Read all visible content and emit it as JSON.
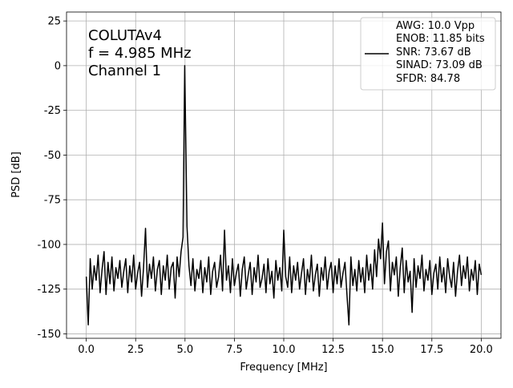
{
  "chart_data": {
    "type": "line",
    "annotations": [
      "COLUTAv4",
      "f = 4.985 MHz",
      "Channel 1"
    ],
    "xlabel": "Frequency [MHz]",
    "ylabel": "PSD [dB]",
    "x": [
      0,
      0.1,
      0.2,
      0.3,
      0.4,
      0.5,
      0.6,
      0.7,
      0.8,
      0.9,
      1,
      1.1,
      1.2,
      1.3,
      1.4,
      1.5,
      1.6,
      1.7,
      1.8,
      1.9,
      2,
      2.1,
      2.2,
      2.3,
      2.4,
      2.5,
      2.6,
      2.7,
      2.8,
      2.9,
      3,
      3.1,
      3.2,
      3.3,
      3.4,
      3.5,
      3.6,
      3.7,
      3.8,
      3.9,
      4,
      4.1,
      4.2,
      4.3,
      4.4,
      4.5,
      4.6,
      4.7,
      4.8,
      4.9,
      4.985,
      5.1,
      5.2,
      5.3,
      5.4,
      5.5,
      5.6,
      5.7,
      5.8,
      5.9,
      6,
      6.1,
      6.2,
      6.3,
      6.4,
      6.5,
      6.6,
      6.7,
      6.8,
      6.9,
      7,
      7.1,
      7.2,
      7.3,
      7.4,
      7.5,
      7.6,
      7.7,
      7.8,
      7.9,
      8,
      8.1,
      8.2,
      8.3,
      8.4,
      8.5,
      8.6,
      8.7,
      8.8,
      8.9,
      9,
      9.1,
      9.2,
      9.3,
      9.4,
      9.5,
      9.6,
      9.7,
      9.8,
      9.9,
      10,
      10.1,
      10.2,
      10.3,
      10.4,
      10.5,
      10.6,
      10.7,
      10.8,
      10.9,
      11,
      11.1,
      11.2,
      11.3,
      11.4,
      11.5,
      11.6,
      11.7,
      11.8,
      11.9,
      12,
      12.1,
      12.2,
      12.3,
      12.4,
      12.5,
      12.6,
      12.7,
      12.8,
      12.9,
      13,
      13.1,
      13.2,
      13.3,
      13.4,
      13.5,
      13.6,
      13.7,
      13.8,
      13.9,
      14,
      14.1,
      14.2,
      14.3,
      14.4,
      14.5,
      14.6,
      14.7,
      14.8,
      14.9,
      15,
      15.1,
      15.2,
      15.3,
      15.4,
      15.5,
      15.6,
      15.7,
      15.8,
      15.9,
      16,
      16.1,
      16.2,
      16.3,
      16.4,
      16.5,
      16.6,
      16.7,
      16.8,
      16.9,
      17,
      17.1,
      17.2,
      17.3,
      17.4,
      17.5,
      17.6,
      17.7,
      17.8,
      17.9,
      18,
      18.1,
      18.2,
      18.3,
      18.4,
      18.5,
      18.6,
      18.7,
      18.8,
      18.9,
      19,
      19.1,
      19.2,
      19.3,
      19.4,
      19.5,
      19.6,
      19.7,
      19.8,
      19.9,
      20
    ],
    "series": [
      {
        "name": "AWG: 10.0 Vpp\nENOB: 11.85 bits\nSNR: 73.67 dB\nSINAD: 73.09 dB\nSFDR: 84.78",
        "color": "#000000",
        "values": [
          -118,
          -145,
          -108,
          -125,
          -112,
          -120,
          -106,
          -127,
          -114,
          -104,
          -128,
          -110,
          -122,
          -107,
          -126,
          -113,
          -119,
          -109,
          -124,
          -115,
          -108,
          -127,
          -112,
          -121,
          -106,
          -125,
          -116,
          -110,
          -129,
          -113,
          -91,
          -124,
          -111,
          -119,
          -107,
          -126,
          -114,
          -109,
          -128,
          -112,
          -120,
          -106,
          -125,
          -113,
          -110,
          -130,
          -107,
          -118,
          -104,
          -96,
          0,
          -90,
          -112,
          -123,
          -108,
          -126,
          -114,
          -119,
          -109,
          -127,
          -113,
          -121,
          -107,
          -128,
          -115,
          -110,
          -124,
          -118,
          -106,
          -126,
          -92,
          -120,
          -112,
          -127,
          -108,
          -123,
          -116,
          -111,
          -129,
          -114,
          -107,
          -125,
          -117,
          -110,
          -128,
          -113,
          -121,
          -106,
          -124,
          -119,
          -111,
          -127,
          -108,
          -122,
          -115,
          -130,
          -109,
          -120,
          -113,
          -126,
          -92,
          -118,
          -124,
          -107,
          -127,
          -112,
          -120,
          -110,
          -125,
          -116,
          -108,
          -128,
          -114,
          -121,
          -106,
          -126,
          -117,
          -111,
          -129,
          -113,
          -120,
          -107,
          -125,
          -115,
          -110,
          -127,
          -112,
          -122,
          -108,
          -124,
          -116,
          -110,
          -128,
          -145,
          -107,
          -123,
          -114,
          -126,
          -109,
          -121,
          -113,
          -127,
          -106,
          -120,
          -111,
          -125,
          -103,
          -118,
          -97,
          -108,
          -88,
          -122,
          -104,
          -98,
          -126,
          -110,
          -117,
          -107,
          -129,
          -113,
          -102,
          -127,
          -109,
          -121,
          -115,
          -138,
          -108,
          -124,
          -112,
          -119,
          -106,
          -126,
          -114,
          -120,
          -109,
          -128,
          -116,
          -111,
          -125,
          -107,
          -121,
          -113,
          -127,
          -108,
          -118,
          -124,
          -110,
          -129,
          -115,
          -106,
          -123,
          -112,
          -119,
          -107,
          -126,
          -114,
          -120,
          -109,
          -128,
          -111,
          -117
        ]
      }
    ],
    "xlim": [
      -1,
      21
    ],
    "ylim": [
      -152.5,
      30
    ],
    "xticks": [
      {
        "value": 0,
        "label": "0.0"
      },
      2.5,
      {
        "value": 5,
        "label": "5.0"
      },
      7.5,
      {
        "value": 10,
        "label": "10.0"
      },
      12.5,
      {
        "value": 15,
        "label": "15.0"
      },
      17.5,
      {
        "value": 20,
        "label": "20.0"
      }
    ],
    "yticks": [
      -150,
      -125,
      -100,
      -75,
      -50,
      -25,
      0,
      25
    ],
    "grid": true,
    "legend": "upper right"
  }
}
